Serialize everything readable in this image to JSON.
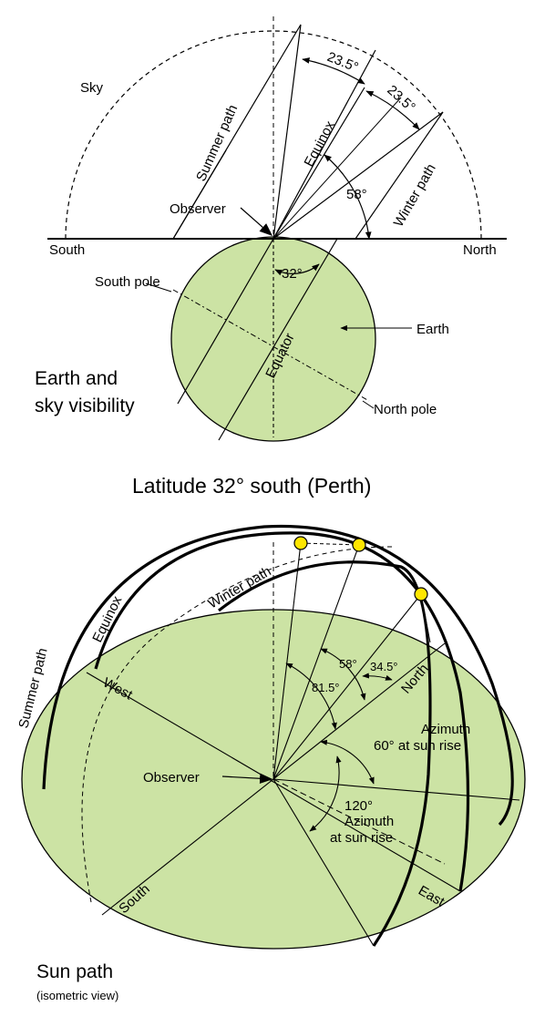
{
  "colors": {
    "earth_fill": "#cce3a4",
    "sun_fill": "#ffe600",
    "line": "#000000",
    "background": "#ffffff"
  },
  "top": {
    "sky": "Sky",
    "south": "South",
    "north": "North",
    "summer_path": "Summer path",
    "equinox": "Equinox",
    "winter_path": "Winter path",
    "observer": "Observer",
    "angle_23a": "23.5°",
    "angle_23b": "23.5°",
    "angle_58": "58°",
    "angle_32": "32°",
    "south_pole": "South pole",
    "north_pole": "North pole",
    "equator": "Equator",
    "earth": "Earth",
    "caption_line1": "Earth and",
    "caption_line2": "sky visibility"
  },
  "latitude_title": "Latitude 32° south (Perth)",
  "bottom": {
    "summer_path": "Summer path",
    "equinox": "Equinox",
    "winter_path": "Winter path",
    "west": "West",
    "north": "North",
    "south": "South",
    "east": "East",
    "observer": "Observer",
    "angle_58": "58°",
    "angle_34": "34.5°",
    "angle_81": "81.5°",
    "azimuth60_line1": "Azimuth",
    "azimuth60_line2": "60° at sun rise",
    "azimuth120_line1": "120°",
    "azimuth120_line2": "Azimuth",
    "azimuth120_line3": "at sun rise",
    "caption_title": "Sun path",
    "caption_sub": "(isometric view)"
  }
}
